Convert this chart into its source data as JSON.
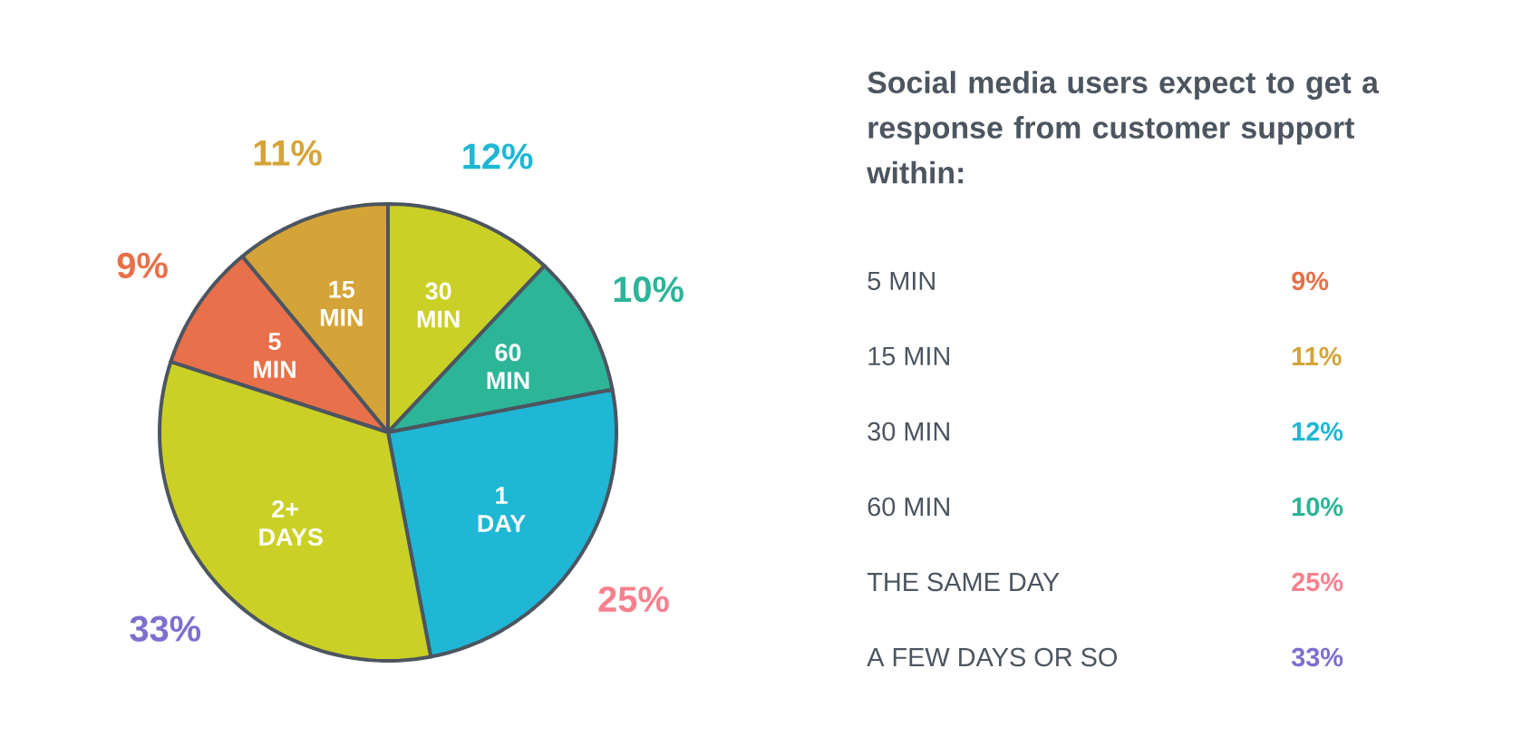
{
  "chart_data": {
    "type": "pie",
    "title": "Social media users expect to get a response from customer support within:",
    "categories": [
      "5 MIN",
      "15 MIN",
      "30 MIN",
      "60 MIN",
      "1 DAY",
      "2+ DAYS"
    ],
    "values": [
      9,
      11,
      12,
      10,
      25,
      33
    ],
    "value_labels": [
      "9%",
      "11%",
      "12%",
      "10%",
      "25%",
      "33%"
    ],
    "colors": [
      "#e8704a",
      "#d5a438",
      "#cbd026",
      "#2db598",
      "#1fb7d5",
      "#cbd026"
    ],
    "annotations": [
      "5 MIN",
      "15 MIN",
      "30 MIN",
      "60 MIN",
      "THE SAME DAY",
      "A FEW DAYS OR SO"
    ]
  }
}
